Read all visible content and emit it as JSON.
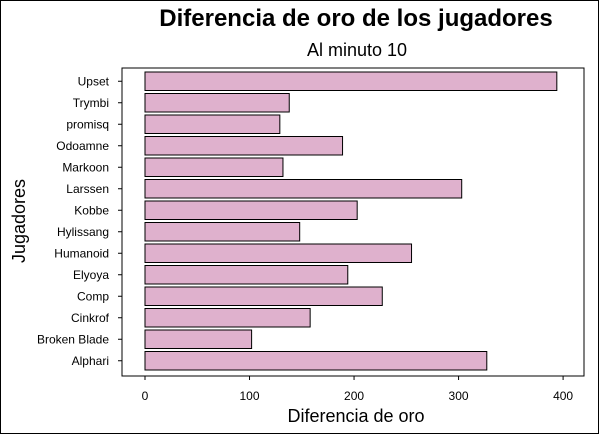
{
  "colors": {
    "bar_fill": "#dfb1cd",
    "bar_stroke": "#000000",
    "background": "#ffffff"
  },
  "chart_data": {
    "type": "bar",
    "orientation": "horizontal",
    "title": "Diferencia de oro de los jugadores",
    "subtitle": "Al minuto 10",
    "xlabel": "Diferencia de oro",
    "ylabel": "Jugadores",
    "xlim": [
      -22,
      420
    ],
    "xticks": [
      0,
      100,
      200,
      300,
      400
    ],
    "grid": false,
    "categories": [
      "Alphari",
      "Broken Blade",
      "Cinkrof",
      "Comp",
      "Elyoya",
      "Humanoid",
      "Hylissang",
      "Kobbe",
      "Larssen",
      "Markoon",
      "Odoamne",
      "promisq",
      "Trymbi",
      "Upset"
    ],
    "values": [
      327,
      102,
      158,
      227,
      194,
      255,
      148,
      203,
      303,
      132,
      189,
      129,
      138,
      394
    ]
  }
}
